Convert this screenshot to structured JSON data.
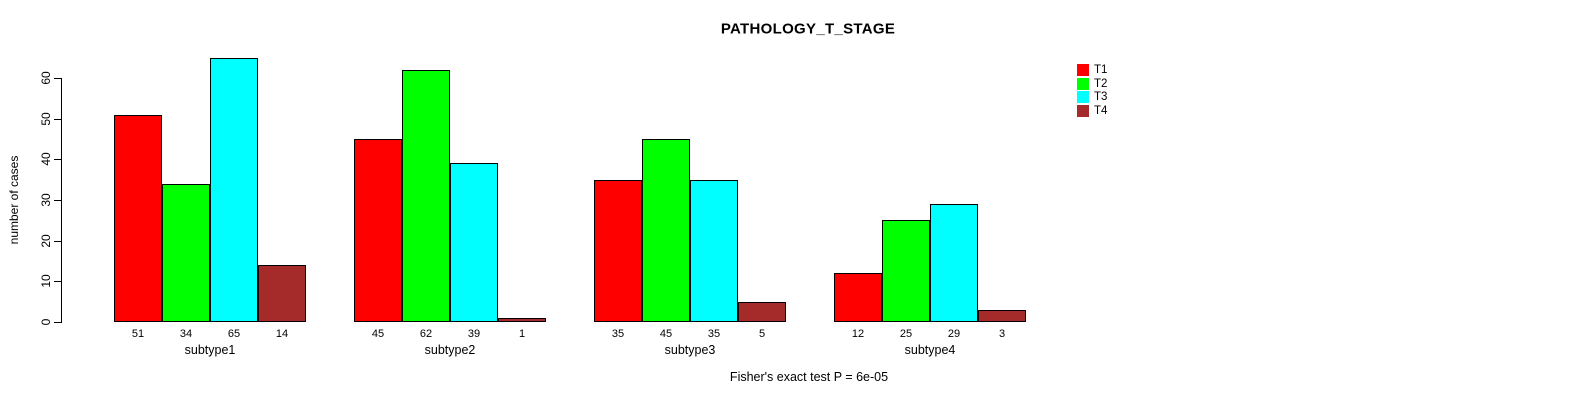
{
  "chart_data": {
    "type": "bar",
    "title": "PATHOLOGY_T_STAGE",
    "ylabel": "number of cases",
    "xlabel": "",
    "categories": [
      "subtype1",
      "subtype2",
      "subtype3",
      "subtype4"
    ],
    "series": [
      {
        "name": "T1",
        "color": "#ff0000",
        "values": [
          51,
          45,
          35,
          12
        ]
      },
      {
        "name": "T2",
        "color": "#00ff00",
        "values": [
          34,
          62,
          45,
          25
        ]
      },
      {
        "name": "T3",
        "color": "#00ffff",
        "values": [
          65,
          39,
          35,
          29
        ]
      },
      {
        "name": "T4",
        "color": "#a52a2a",
        "values": [
          14,
          1,
          5,
          3
        ]
      }
    ],
    "yticks": [
      0,
      10,
      20,
      30,
      40,
      50,
      60
    ],
    "ylim": [
      0,
      66
    ],
    "grid": false,
    "bar_value_labels_shown": true,
    "legend": {
      "position": "top-right",
      "border": "none"
    },
    "annotation": "Fisher's exact test P = 6e-05",
    "axis_color": "#000000",
    "background_color": "#ffffff"
  }
}
